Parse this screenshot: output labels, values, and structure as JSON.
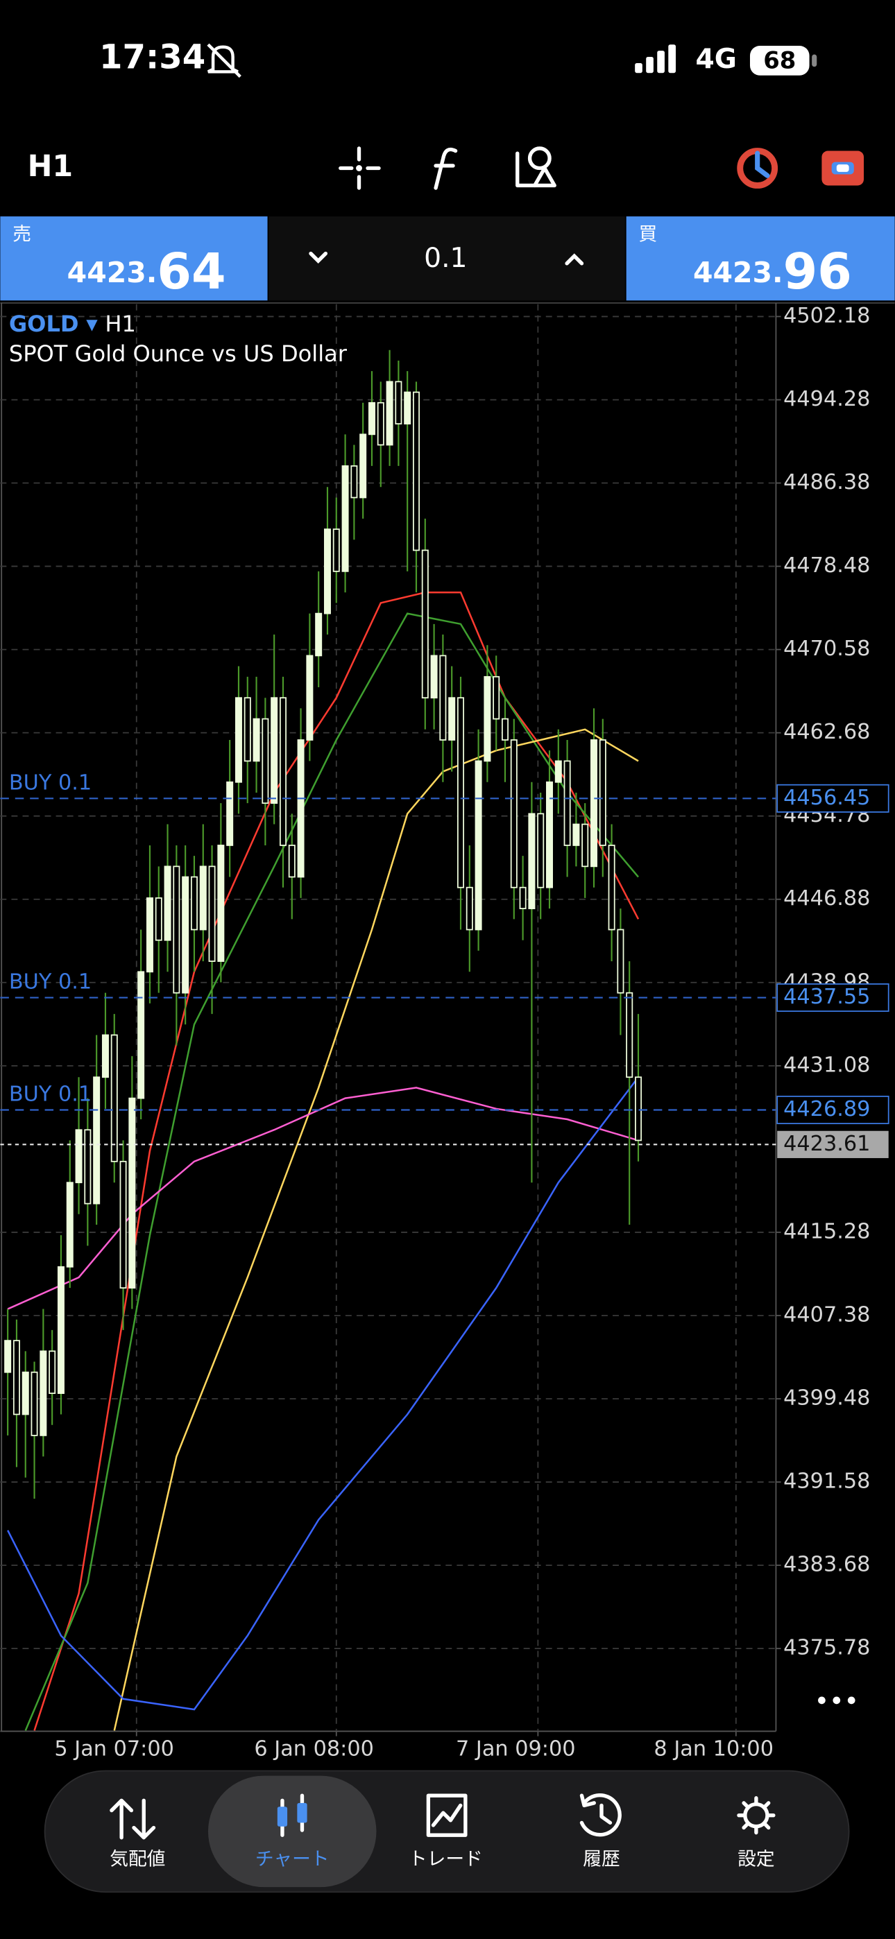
{
  "status_bar": {
    "time": "17:34",
    "network": "4G",
    "battery": "68"
  },
  "toolbar": {
    "timeframe": "H1"
  },
  "quote": {
    "sell": {
      "label": "売",
      "price_head": "4423.",
      "price_tail": "64"
    },
    "volume": "0.1",
    "buy": {
      "label": "買",
      "price_head": "4423.",
      "price_tail": "96"
    }
  },
  "chart_data": {
    "type": "candlestick",
    "symbol": "GOLD",
    "timeframe": "H1",
    "description": "SPOT Gold Ounce vs US Dollar",
    "ylim": [
      4367.93,
      4503.35
    ],
    "yticks": [
      4502.18,
      4494.28,
      4486.38,
      4478.48,
      4470.58,
      4462.68,
      4454.78,
      4446.88,
      4438.98,
      4431.08,
      4415.28,
      4407.38,
      4399.48,
      4391.58,
      4383.68,
      4375.78
    ],
    "xlim": [
      -0.84,
      86.5
    ],
    "xticks": [
      {
        "value": 14.5,
        "label": "5 Jan 07:00"
      },
      {
        "value": 37,
        "label": "6 Jan 08:00"
      },
      {
        "value": 59.7,
        "label": "7 Jan 09:00"
      },
      {
        "value": 82,
        "label": "8 Jan 10:00"
      }
    ],
    "grid": true,
    "candle_color": "#eefcdc",
    "wick_color": "#4c9a2a",
    "candles": [
      [
        4402,
        4408,
        4396,
        4405
      ],
      [
        4405,
        4407,
        4393,
        4398
      ],
      [
        4398,
        4404,
        4392,
        4402
      ],
      [
        4402,
        4403,
        4390,
        4396
      ],
      [
        4396,
        4408,
        4394,
        4404
      ],
      [
        4404,
        4406,
        4397,
        4400
      ],
      [
        4400,
        4415,
        4398,
        4412
      ],
      [
        4412,
        4424,
        4410,
        4420
      ],
      [
        4420,
        4430,
        4417,
        4425
      ],
      [
        4425,
        4428,
        4414,
        4418
      ],
      [
        4418,
        4434,
        4416,
        4430
      ],
      [
        4430,
        4438,
        4427,
        4434
      ],
      [
        4434,
        4436,
        4420,
        4422
      ],
      [
        4422,
        4424,
        4406,
        4410
      ],
      [
        4410,
        4432,
        4408,
        4428
      ],
      [
        4428,
        4444,
        4426,
        4440
      ],
      [
        4440,
        4452,
        4437,
        4447
      ],
      [
        4447,
        4450,
        4438,
        4443
      ],
      [
        4443,
        4454,
        4440,
        4450
      ],
      [
        4450,
        4452,
        4433,
        4438
      ],
      [
        4438,
        4452,
        4435,
        4449
      ],
      [
        4449,
        4451,
        4440,
        4444
      ],
      [
        4444,
        4454,
        4441,
        4450
      ],
      [
        4450,
        4452,
        4436,
        4441
      ],
      [
        4441,
        4456,
        4439,
        4452
      ],
      [
        4452,
        4462,
        4449,
        4458
      ],
      [
        4458,
        4469,
        4455,
        4466
      ],
      [
        4466,
        4468,
        4456,
        4460
      ],
      [
        4460,
        4468,
        4457,
        4464
      ],
      [
        4464,
        4466,
        4452,
        4456
      ],
      [
        4456,
        4472,
        4454,
        4466
      ],
      [
        4466,
        4468,
        4448,
        4452
      ],
      [
        4452,
        4455,
        4445,
        4449
      ],
      [
        4449,
        4465,
        4447,
        4462
      ],
      [
        4462,
        4474,
        4460,
        4470
      ],
      [
        4470,
        4478,
        4467,
        4474
      ],
      [
        4474,
        4486,
        4472,
        4482
      ],
      [
        4482,
        4485,
        4475,
        4478
      ],
      [
        4478,
        4491,
        4476,
        4488
      ],
      [
        4488,
        4490,
        4481,
        4485
      ],
      [
        4485,
        4494,
        4483,
        4491
      ],
      [
        4491,
        4497,
        4488,
        4494
      ],
      [
        4494,
        4496,
        4486,
        4490
      ],
      [
        4490,
        4499,
        4488,
        4496
      ],
      [
        4496,
        4498,
        4488,
        4492
      ],
      [
        4492,
        4497,
        4478,
        4495
      ],
      [
        4495,
        4496,
        4476,
        4480
      ],
      [
        4480,
        4483,
        4463,
        4466
      ],
      [
        4466,
        4473,
        4463,
        4470
      ],
      [
        4470,
        4472,
        4458,
        4462
      ],
      [
        4462,
        4469,
        4459,
        4466
      ],
      [
        4466,
        4468,
        4444,
        4448
      ],
      [
        4448,
        4452,
        4440,
        4444
      ],
      [
        4444,
        4463,
        4442,
        4460
      ],
      [
        4460,
        4471,
        4458,
        4468
      ],
      [
        4468,
        4470,
        4461,
        4464
      ],
      [
        4464,
        4466,
        4458,
        4462
      ],
      [
        4462,
        4464,
        4445,
        4448
      ],
      [
        4448,
        4451,
        4443,
        4446
      ],
      [
        4446,
        4458,
        4420,
        4455
      ],
      [
        4455,
        4457,
        4445,
        4448
      ],
      [
        4448,
        4461,
        4446,
        4458
      ],
      [
        4458,
        4463,
        4455,
        4460
      ],
      [
        4460,
        4462,
        4449,
        4452
      ],
      [
        4452,
        4457,
        4450,
        4454
      ],
      [
        4454,
        4456,
        4447,
        4450
      ],
      [
        4450,
        4465,
        4448,
        4462
      ],
      [
        4462,
        4464,
        4449,
        4452
      ],
      [
        4452,
        4454,
        4441,
        4444
      ],
      [
        4444,
        4446,
        4434,
        4438
      ],
      [
        4438,
        4441,
        4416,
        4430
      ],
      [
        4430,
        4436,
        4422,
        4424
      ]
    ],
    "moving_averages": [
      {
        "color": "#ff3b30",
        "points": [
          [
            3,
            4368
          ],
          [
            8,
            4381
          ],
          [
            12,
            4402
          ],
          [
            16,
            4423
          ],
          [
            21,
            4440
          ],
          [
            30,
            4457
          ],
          [
            37,
            4466
          ],
          [
            42,
            4475
          ],
          [
            47,
            4476
          ],
          [
            51,
            4476
          ],
          [
            56,
            4466
          ],
          [
            63,
            4458
          ],
          [
            71,
            4445
          ]
        ]
      },
      {
        "color": "#3f9f2f",
        "points": [
          [
            2,
            4368
          ],
          [
            9,
            4382
          ],
          [
            16,
            4415
          ],
          [
            21,
            4435
          ],
          [
            30,
            4450
          ],
          [
            37,
            4462
          ],
          [
            45,
            4474
          ],
          [
            51,
            4473
          ],
          [
            56,
            4466
          ],
          [
            63,
            4457
          ],
          [
            71,
            4449
          ]
        ]
      },
      {
        "color": "#ffd75e",
        "points": [
          [
            12,
            4368
          ],
          [
            19,
            4394
          ],
          [
            27,
            4411
          ],
          [
            35,
            4429
          ],
          [
            41,
            4444
          ],
          [
            45,
            4455
          ],
          [
            49,
            4459
          ],
          [
            55,
            4461
          ],
          [
            60,
            4462
          ],
          [
            65,
            4463
          ],
          [
            71,
            4460
          ]
        ]
      },
      {
        "color": "#ff5fd2",
        "points": [
          [
            0,
            4408
          ],
          [
            8,
            4411
          ],
          [
            14,
            4417
          ],
          [
            21,
            4422
          ],
          [
            30,
            4425
          ],
          [
            38,
            4428
          ],
          [
            46,
            4429
          ],
          [
            55,
            4427
          ],
          [
            63,
            4426
          ],
          [
            71,
            4424
          ]
        ]
      },
      {
        "color": "#3a64ff",
        "points": [
          [
            0,
            4387
          ],
          [
            6,
            4377
          ],
          [
            13,
            4371
          ],
          [
            21,
            4370
          ],
          [
            27,
            4377
          ],
          [
            35,
            4388
          ],
          [
            45,
            4398
          ],
          [
            55,
            4410
          ],
          [
            62,
            4420
          ],
          [
            71,
            4430
          ]
        ]
      }
    ],
    "orders": [
      {
        "label": "BUY 0.1",
        "price": 4456.45
      },
      {
        "label": "BUY 0.1",
        "price": 4437.55
      },
      {
        "label": "BUY 0.1",
        "price": 4426.89
      }
    ],
    "current_price": 4423.61
  },
  "nav": [
    {
      "label": "気配値",
      "active": false
    },
    {
      "label": "チャート",
      "active": true
    },
    {
      "label": "トレード",
      "active": false
    },
    {
      "label": "履歴",
      "active": false
    },
    {
      "label": "設定",
      "active": false
    }
  ]
}
